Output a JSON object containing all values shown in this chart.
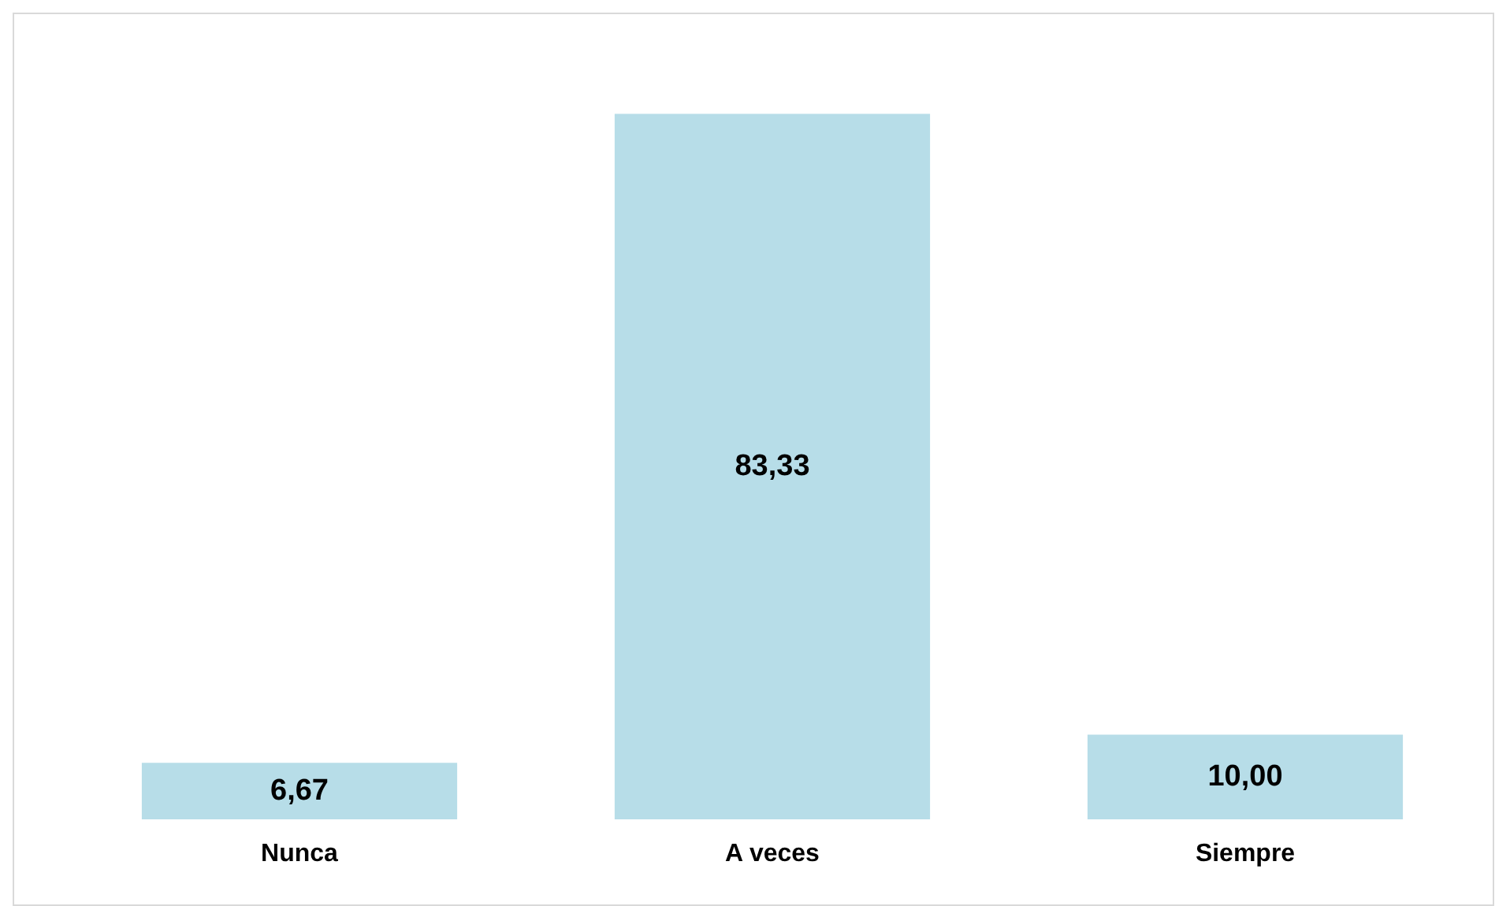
{
  "chart_data": {
    "type": "bar",
    "categories": [
      "Nunca",
      "A veces",
      "Siempre"
    ],
    "values": [
      6.67,
      83.33,
      10.0
    ],
    "color": "#b7dde8",
    "value_labels": [
      "6,67",
      "83,33",
      "10,00"
    ]
  }
}
